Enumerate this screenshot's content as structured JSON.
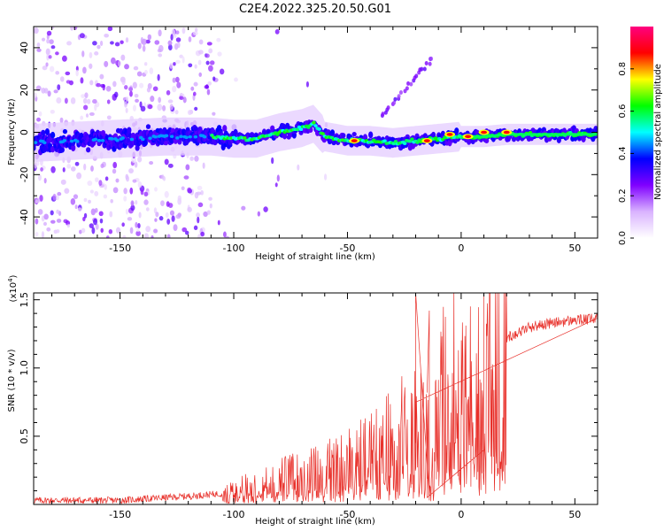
{
  "figure": {
    "title": "C2E4.2022.325.20.50.G01"
  },
  "chart_data": [
    {
      "type": "heatmap",
      "title": "C2E4.2022.325.20.50.G01",
      "xlabel": "Height of straight line (km)",
      "ylabel": "Frequency (Hz)",
      "xlim": [
        -188,
        60
      ],
      "ylim": [
        -50,
        50
      ],
      "xticks": [
        -150,
        -100,
        -50,
        0,
        50
      ],
      "yticks": [
        -40,
        -20,
        0,
        20,
        40
      ],
      "colorbar": {
        "label": "Normalized spectral amplitude",
        "range": [
          0,
          1
        ],
        "ticks": [
          0.0,
          0.2,
          0.4,
          0.6,
          0.8
        ],
        "colors": [
          "#ffffff",
          "#d9b3ff",
          "#8000ff",
          "#0000ff",
          "#00ffff",
          "#00ff00",
          "#ffff00",
          "#ff0000",
          "#ff0080"
        ]
      },
      "ridge": {
        "x": [
          -188,
          -170,
          -150,
          -130,
          -110,
          -100,
          -90,
          -80,
          -70,
          -65,
          -60,
          -50,
          -40,
          -30,
          -20,
          -10,
          0,
          10,
          20,
          30,
          40,
          50,
          60
        ],
        "y": [
          -5,
          -4,
          -3,
          -2,
          -2,
          -3,
          -3,
          0,
          2,
          4,
          -2,
          -4,
          -4,
          -5,
          -4,
          -3,
          -2,
          -2,
          -1,
          -1,
          -1,
          -1,
          -1
        ]
      },
      "peaks_red": [
        {
          "x": -47,
          "y": -4
        },
        {
          "x": -15,
          "y": -4
        },
        {
          "x": -5,
          "y": -1
        },
        {
          "x": 3,
          "y": -2
        },
        {
          "x": 10,
          "y": 0
        },
        {
          "x": 20,
          "y": 0
        }
      ]
    },
    {
      "type": "line",
      "xlabel": "Height of straight line (km)",
      "ylabel": "SNR (10 * v/v)",
      "scale_label": "(x10",
      "scale_exp": "4",
      "scale_close": ")",
      "xlim": [
        -188,
        60
      ],
      "ylim": [
        0,
        1.55
      ],
      "xticks": [
        -150,
        -100,
        -50,
        0,
        50
      ],
      "yticks": [
        0.5,
        1.0,
        1.5
      ],
      "color": "#e8302a",
      "series": [
        {
          "values_x": [
            -188,
            -150,
            -120,
            -105,
            -95,
            -90,
            -80,
            -70,
            -60,
            -50,
            -40,
            -30,
            -25,
            -20,
            -15,
            -14,
            -10,
            -5,
            0,
            5,
            8,
            10,
            11,
            13,
            15,
            20,
            30,
            40,
            50,
            60
          ],
          "values_y": [
            0.03,
            0.03,
            0.06,
            0.08,
            0.15,
            0.18,
            0.22,
            0.26,
            0.3,
            0.37,
            0.45,
            0.55,
            0.65,
            0.75,
            0.82,
            0.05,
            0.9,
            1.05,
            1.1,
            1.05,
            0.95,
            0.4,
            1.25,
            1.15,
            1.2,
            1.22,
            1.3,
            1.33,
            1.35,
            1.36
          ]
        }
      ],
      "spikes": [
        {
          "x": -20,
          "y": 1.55
        },
        {
          "x": -14,
          "y": 1.42
        },
        {
          "x": -15,
          "y": 0.05
        },
        {
          "x": 10,
          "y": 1.55
        },
        {
          "x": 10,
          "y": 0.28
        }
      ]
    }
  ]
}
